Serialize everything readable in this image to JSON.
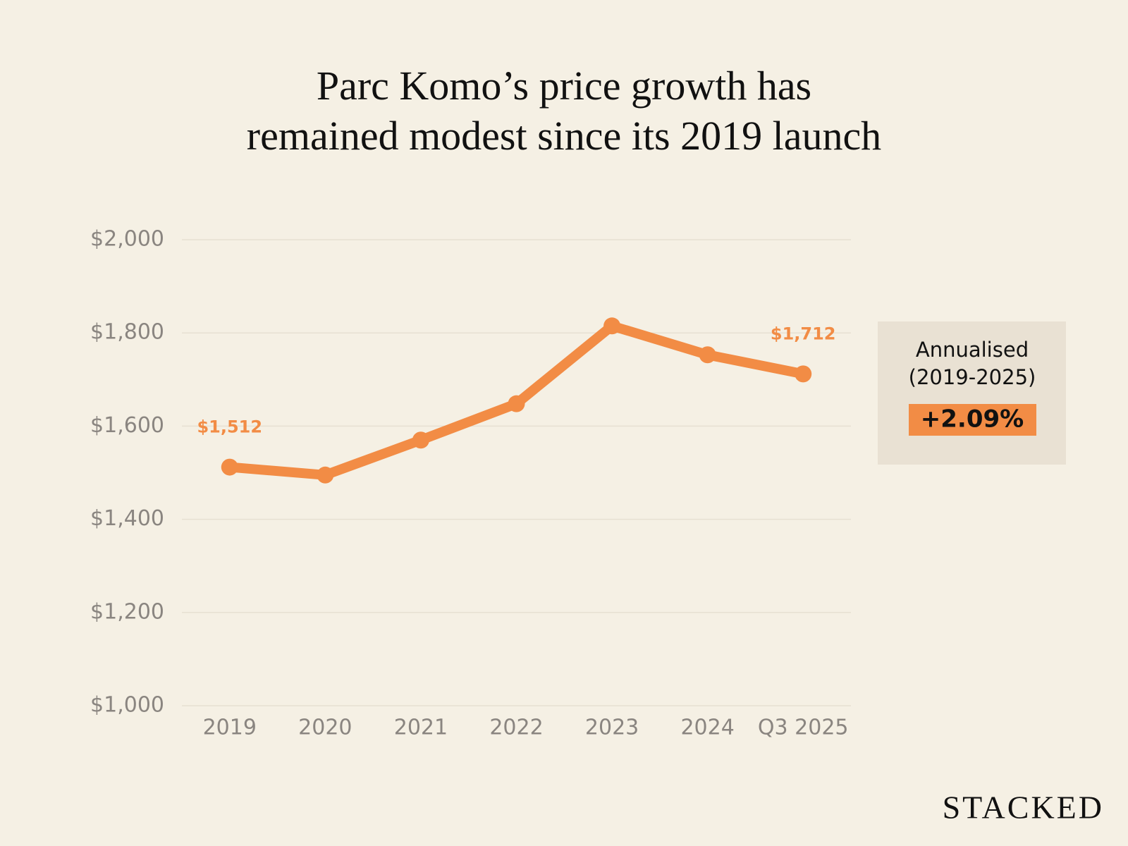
{
  "chart_data": {
    "type": "line",
    "title": "Parc Komo’s price growth has\nremained modest since its 2019 launch",
    "categories": [
      "2019",
      "2020",
      "2021",
      "2022",
      "2023",
      "2024",
      "Q3 2025"
    ],
    "series": [
      {
        "color": "#f28c45",
        "values": [
          1512,
          1495,
          1570,
          1648,
          1815,
          1753,
          1712
        ],
        "value_labels": [
          "$1,512",
          null,
          null,
          null,
          null,
          null,
          "$1,712"
        ]
      }
    ],
    "ylim": [
      1000,
      2000
    ],
    "yticks": [
      {
        "value": 1000,
        "label": "$1,000"
      },
      {
        "value": 1200,
        "label": "$1,200"
      },
      {
        "value": 1400,
        "label": "$1,400"
      },
      {
        "value": 1600,
        "label": "$1,600"
      },
      {
        "value": 1800,
        "label": "$1,800"
      },
      {
        "value": 2000,
        "label": "$2,000"
      }
    ],
    "grid": true,
    "annotation": {
      "label": "Annualised",
      "period": "(2019-2025)",
      "value": "+2.09%"
    },
    "brand": "STACKED"
  }
}
